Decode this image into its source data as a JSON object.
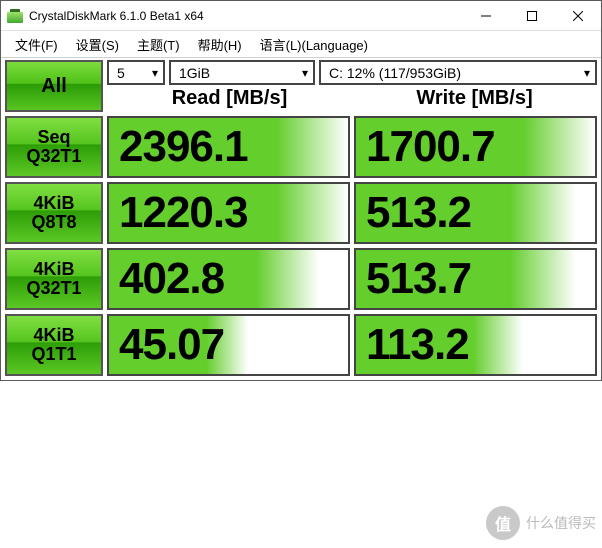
{
  "window": {
    "title": "CrystalDiskMark 6.1.0 Beta1 x64"
  },
  "menu": {
    "file": "文件(F)",
    "settings": "设置(S)",
    "theme": "主题(T)",
    "help": "帮助(H)",
    "language": "语言(L)(Language)"
  },
  "controls": {
    "all_label": "All",
    "runs": "5",
    "size": "1GiB",
    "drive": "C: 12% (117/953GiB)"
  },
  "headers": {
    "read": "Read [MB/s]",
    "write": "Write [MB/s]"
  },
  "rows": [
    {
      "label1": "Seq",
      "label2": "Q32T1",
      "read": "2396.1",
      "write": "1700.7",
      "read_fill": 100,
      "write_fill": 100
    },
    {
      "label1": "4KiB",
      "label2": "Q8T8",
      "read": "1220.3",
      "write": "513.2",
      "read_fill": 100,
      "write_fill": 92
    },
    {
      "label1": "4KiB",
      "label2": "Q32T1",
      "read": "402.8",
      "write": "513.7",
      "read_fill": 88,
      "write_fill": 92
    },
    {
      "label1": "4KiB",
      "label2": "Q1T1",
      "read": "45.07",
      "write": "113.2",
      "read_fill": 58,
      "write_fill": 70
    }
  ],
  "colors": {
    "green_light": "#7bdc3c",
    "green_dark": "#2a9b05",
    "bar_green": "#5bcb21",
    "border": "#545454",
    "background": "#ffffff"
  },
  "watermark": {
    "badge": "值",
    "text": "什么值得买"
  }
}
